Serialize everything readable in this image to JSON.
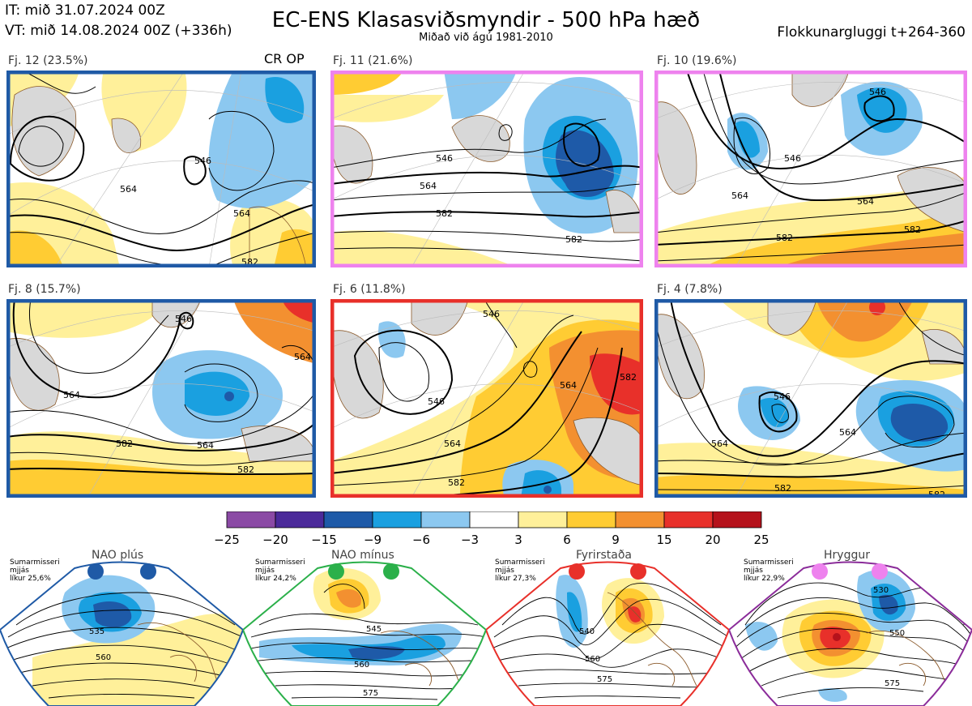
{
  "header": {
    "init": "IT: mið 31.07.2024 00Z",
    "valid": "VT: mið 14.08.2024 00Z  (+336h)",
    "title": "EC-ENS Klasasviðsmyndir - 500 hPa hæð",
    "subtitle": "Miðað við ágú 1981-2010",
    "window": "Flokkunargluggi t+264-360"
  },
  "panels": [
    {
      "label": "Fj. 12 (23.5%)",
      "tag": "CR OP",
      "border": "#1f5aa6",
      "contours": [
        "546",
        "564",
        "546",
        "564",
        "582"
      ]
    },
    {
      "label": "Fj. 11 (21.6%)",
      "tag": "",
      "border": "#ee82ee",
      "contours": [
        "546",
        "546",
        "564",
        "582",
        "582"
      ]
    },
    {
      "label": "Fj. 10 (19.6%)",
      "tag": "",
      "border": "#ee82ee",
      "contours": [
        "546",
        "546",
        "564",
        "564",
        "582",
        "582"
      ]
    },
    {
      "label": "Fj. 8 (15.7%)",
      "tag": "",
      "border": "#1f5aa6",
      "contours": [
        "564",
        "546",
        "564",
        "564",
        "582",
        "582"
      ]
    },
    {
      "label": "Fj. 6 (11.8%)",
      "tag": "",
      "border": "#e8302a",
      "contours": [
        "546",
        "546",
        "564",
        "564",
        "582",
        "582"
      ]
    },
    {
      "label": "Fj. 4 (7.8%)",
      "tag": "",
      "border": "#1f5aa6",
      "contours": [
        "546",
        "564",
        "564",
        "582",
        "582"
      ]
    }
  ],
  "colorbar": {
    "ticks": [
      "−25",
      "−20",
      "−15",
      "−9",
      "−6",
      "−3",
      "3",
      "6",
      "9",
      "15",
      "20",
      "25"
    ],
    "colors": [
      "#8b4aa5",
      "#4b2a9a",
      "#1e5aa8",
      "#1aa0e0",
      "#8cc8f0",
      "#ffffff",
      "#fff09a",
      "#ffcc33",
      "#f39030",
      "#e8302a",
      "#b5121b"
    ]
  },
  "regimes": [
    {
      "name": "NAO plús",
      "season": "Sumarmisseri",
      "freq_word": "mjjás",
      "prob": "líkur 25,6%",
      "dot_color": "#1f5aa6",
      "border": "#1f5aa6",
      "contours": [
        "535",
        "560"
      ]
    },
    {
      "name": "NAO mínus",
      "season": "Sumarmisseri",
      "freq_word": "mjjás",
      "prob": "líkur 24,2%",
      "dot_color": "#2bb04a",
      "border": "#2bb04a",
      "contours": [
        "545",
        "560",
        "575"
      ]
    },
    {
      "name": "Fyrirstaða",
      "season": "Sumarmisseri",
      "freq_word": "mjjás",
      "prob": "líkur 27,3%",
      "dot_color": "#e8302a",
      "border": "#e8302a",
      "contours": [
        "540",
        "560",
        "575"
      ]
    },
    {
      "name": "Hryggur",
      "season": "Sumarmisseri",
      "freq_word": "mjjás",
      "prob": "líkur 22,9%",
      "dot_color": "#ee82ee",
      "border": "#8b2c9a",
      "contours": [
        "530",
        "550",
        "575"
      ]
    }
  ]
}
